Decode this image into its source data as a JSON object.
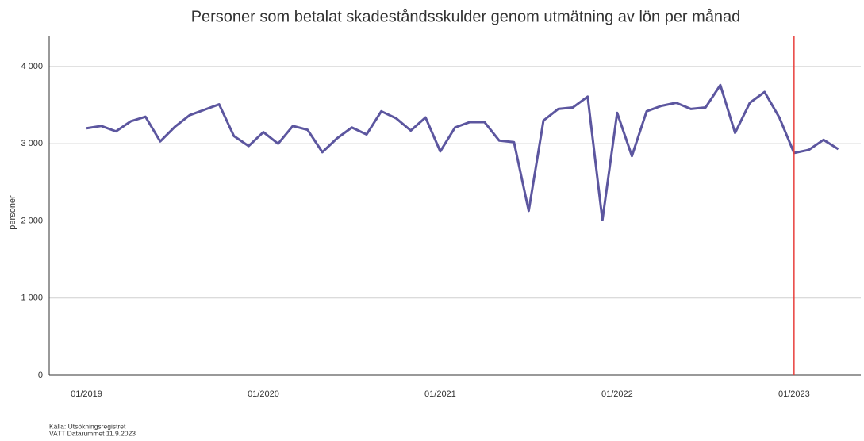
{
  "chart_data": {
    "type": "line",
    "title": "Personer som betalat skadeståndsskulder genom utmätning av lön per månad",
    "y_label": "personer",
    "source": [
      "Källa: Utsökningsregistret",
      "VATT Datarummet 11.9.2023"
    ],
    "categories": [
      "01/2019",
      null,
      null,
      null,
      null,
      null,
      null,
      null,
      null,
      null,
      null,
      null,
      "01/2020",
      null,
      null,
      null,
      null,
      null,
      null,
      null,
      null,
      null,
      null,
      null,
      "01/2021",
      null,
      null,
      null,
      null,
      null,
      null,
      null,
      null,
      null,
      null,
      null,
      "01/2022",
      null,
      null,
      null,
      null,
      null,
      null,
      null,
      null,
      null,
      null,
      null,
      "01/2023",
      null,
      null,
      null
    ],
    "series": [
      {
        "name": "personer",
        "color": "#5c569f",
        "values": [
          3200,
          3230,
          3160,
          3290,
          3350,
          3030,
          3220,
          3370,
          3440,
          3510,
          3100,
          2970,
          3150,
          3000,
          3230,
          3180,
          2890,
          3070,
          3210,
          3120,
          3420,
          3330,
          3170,
          3340,
          2900,
          3210,
          3280,
          3280,
          3040,
          3020,
          2130,
          3300,
          3450,
          3470,
          3610,
          2010,
          3400,
          2840,
          3420,
          3490,
          3530,
          3450,
          3470,
          3760,
          3140,
          3530,
          3670,
          3340,
          2880,
          2920,
          3050,
          2930
        ]
      }
    ],
    "vline": {
      "at": 48,
      "color": "#e8403c"
    },
    "ylim": [
      0,
      4400
    ],
    "yticks": [
      0,
      {
        "value": 1000,
        "label": "1 000"
      },
      {
        "value": 2000,
        "label": "2 000"
      },
      {
        "value": 3000,
        "label": "3 000"
      },
      {
        "value": 4000,
        "label": "4 000"
      }
    ],
    "grid": true
  }
}
